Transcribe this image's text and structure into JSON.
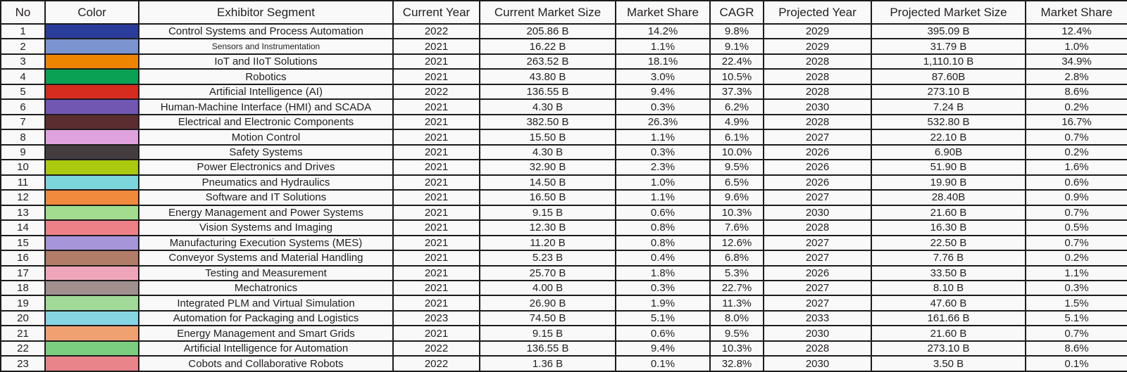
{
  "table": {
    "headers": [
      "No",
      "Color",
      "Exhibitor Segment",
      "Current Year",
      "Current Market Size",
      "Market Share",
      "CAGR",
      "Projected Year",
      "Projected Market Size",
      "Market Share"
    ],
    "rows": [
      {
        "no": "1",
        "color": "#2b3d9b",
        "segment": "Control Systems and Process Automation",
        "current_year": "2022",
        "current_market_size": "205.86 B",
        "market_share": "14.2%",
        "cagr": "9.8%",
        "projected_year": "2029",
        "projected_market_size": "395.09 B",
        "projected_market_share": "12.4%",
        "segment_small": false
      },
      {
        "no": "2",
        "color": "#7b94cf",
        "segment": "Sensors and Instrumentation",
        "current_year": "2021",
        "current_market_size": "16.22 B",
        "market_share": "1.1%",
        "cagr": "9.1%",
        "projected_year": "2029",
        "projected_market_size": "31.79 B",
        "projected_market_share": "1.0%",
        "segment_small": true
      },
      {
        "no": "3",
        "color": "#ee8500",
        "segment": "IoT and IIoT Solutions",
        "current_year": "2021",
        "current_market_size": "263.52 B",
        "market_share": "18.1%",
        "cagr": "22.4%",
        "projected_year": "2028",
        "projected_market_size": "1,110.10 B",
        "projected_market_share": "34.9%",
        "segment_small": false
      },
      {
        "no": "4",
        "color": "#0aa154",
        "segment": "Robotics",
        "current_year": "2021",
        "current_market_size": "43.80 B",
        "market_share": "3.0%",
        "cagr": "10.5%",
        "projected_year": "2028",
        "projected_market_size": "87.60B",
        "projected_market_share": "2.8%",
        "segment_small": false
      },
      {
        "no": "5",
        "color": "#d62c1f",
        "segment": "Artificial Intelligence (AI)",
        "current_year": "2022",
        "current_market_size": "136.55 B",
        "market_share": "9.4%",
        "cagr": "37.3%",
        "projected_year": "2028",
        "projected_market_size": "273.10 B",
        "projected_market_share": "8.6%",
        "segment_small": false
      },
      {
        "no": "6",
        "color": "#7156b2",
        "segment": "Human-Machine Interface (HMI) and SCADA",
        "current_year": "2021",
        "current_market_size": "4.30 B",
        "market_share": "0.3%",
        "cagr": "6.2%",
        "projected_year": "2030",
        "projected_market_size": "7.24 B",
        "projected_market_share": "0.2%",
        "segment_small": false
      },
      {
        "no": "7",
        "color": "#5c2d30",
        "segment": "Electrical and Electronic Components",
        "current_year": "2021",
        "current_market_size": "382.50 B",
        "market_share": "26.3%",
        "cagr": "4.9%",
        "projected_year": "2028",
        "projected_market_size": "532.80 B",
        "projected_market_share": "16.7%",
        "segment_small": false
      },
      {
        "no": "8",
        "color": "#e0a2de",
        "segment": "Motion Control",
        "current_year": "2021",
        "current_market_size": "15.50 B",
        "market_share": "1.1%",
        "cagr": "6.1%",
        "projected_year": "2027",
        "projected_market_size": "22.10 B",
        "projected_market_share": "0.7%",
        "segment_small": false
      },
      {
        "no": "9",
        "color": "#433d3f",
        "segment": "Safety Systems",
        "current_year": "2021",
        "current_market_size": "4.30 B",
        "market_share": "0.3%",
        "cagr": "10.0%",
        "projected_year": "2026",
        "projected_market_size": "6.90B",
        "projected_market_share": "0.2%",
        "segment_small": false
      },
      {
        "no": "10",
        "color": "#abc90f",
        "segment": "Power Electronics and Drives",
        "current_year": "2021",
        "current_market_size": "32.90 B",
        "market_share": "2.3%",
        "cagr": "9.5%",
        "projected_year": "2026",
        "projected_market_size": "51.90 B",
        "projected_market_share": "1.6%",
        "segment_small": false
      },
      {
        "no": "11",
        "color": "#7cd5da",
        "segment": "Pneumatics and Hydraulics",
        "current_year": "2021",
        "current_market_size": "14.50 B",
        "market_share": "1.0%",
        "cagr": "6.5%",
        "projected_year": "2026",
        "projected_market_size": "19.90 B",
        "projected_market_share": "0.6%",
        "segment_small": false
      },
      {
        "no": "12",
        "color": "#f28a3e",
        "segment": "Software and IT Solutions",
        "current_year": "2021",
        "current_market_size": "16.50 B",
        "market_share": "1.1%",
        "cagr": "9.6%",
        "projected_year": "2027",
        "projected_market_size": "28.40B",
        "projected_market_share": "0.9%",
        "segment_small": false
      },
      {
        "no": "13",
        "color": "#a3dc8e",
        "segment": "Energy Management and Power Systems",
        "current_year": "2021",
        "current_market_size": "9.15 B",
        "market_share": "0.6%",
        "cagr": "10.3%",
        "projected_year": "2030",
        "projected_market_size": "21.60 B",
        "projected_market_share": "0.7%",
        "segment_small": false
      },
      {
        "no": "14",
        "color": "#ed8187",
        "segment": "Vision Systems and Imaging",
        "current_year": "2021",
        "current_market_size": "12.30 B",
        "market_share": "0.8%",
        "cagr": "7.6%",
        "projected_year": "2028",
        "projected_market_size": "16.30 B",
        "projected_market_share": "0.5%",
        "segment_small": false
      },
      {
        "no": "15",
        "color": "#a795d9",
        "segment": "Manufacturing Execution Systems (MES)",
        "current_year": "2021",
        "current_market_size": "11.20 B",
        "market_share": "0.8%",
        "cagr": "12.6%",
        "projected_year": "2027",
        "projected_market_size": "22.50 B",
        "projected_market_share": "0.7%",
        "segment_small": false
      },
      {
        "no": "16",
        "color": "#b17c68",
        "segment": "Conveyor Systems and Material Handling",
        "current_year": "2021",
        "current_market_size": "5.23 B",
        "market_share": "0.4%",
        "cagr": "6.8%",
        "projected_year": "2027",
        "projected_market_size": "7.76 B",
        "projected_market_share": "0.2%",
        "segment_small": false
      },
      {
        "no": "17",
        "color": "#efa6bb",
        "segment": "Testing and Measurement",
        "current_year": "2021",
        "current_market_size": "25.70 B",
        "market_share": "1.8%",
        "cagr": "5.3%",
        "projected_year": "2026",
        "projected_market_size": "33.50 B",
        "projected_market_share": "1.1%",
        "segment_small": false
      },
      {
        "no": "18",
        "color": "#a09190",
        "segment": "Mechatronics",
        "current_year": "2021",
        "current_market_size": "4.00 B",
        "market_share": "0.3%",
        "cagr": "22.7%",
        "projected_year": "2027",
        "projected_market_size": "8.10 B",
        "projected_market_share": "0.3%",
        "segment_small": false
      },
      {
        "no": "19",
        "color": "#a0d998",
        "segment": "Integrated PLM and Virtual Simulation",
        "current_year": "2021",
        "current_market_size": "26.90 B",
        "market_share": "1.9%",
        "cagr": "11.3%",
        "projected_year": "2027",
        "projected_market_size": "47.60 B",
        "projected_market_share": "1.5%",
        "segment_small": false
      },
      {
        "no": "20",
        "color": "#86d5e2",
        "segment": "Automation for Packaging and Logistics",
        "current_year": "2023",
        "current_market_size": "74.50 B",
        "market_share": "5.1%",
        "cagr": "8.0%",
        "projected_year": "2033",
        "projected_market_size": "161.66 B",
        "projected_market_share": "5.1%",
        "segment_small": false
      },
      {
        "no": "21",
        "color": "#f0a172",
        "segment": "Energy Management and Smart Grids",
        "current_year": "2021",
        "current_market_size": "9.15 B",
        "market_share": "0.6%",
        "cagr": "9.5%",
        "projected_year": "2030",
        "projected_market_size": "21.60 B",
        "projected_market_share": "0.7%",
        "segment_small": false
      },
      {
        "no": "22",
        "color": "#7bce80",
        "segment": "Artificial Intelligence for Automation",
        "current_year": "2022",
        "current_market_size": "136.55 B",
        "market_share": "9.4%",
        "cagr": "10.3%",
        "projected_year": "2028",
        "projected_market_size": "273.10 B",
        "projected_market_share": "8.6%",
        "segment_small": false
      },
      {
        "no": "23",
        "color": "#e9848b",
        "segment": "Cobots and Collaborative Robots",
        "current_year": "2022",
        "current_market_size": "1.36 B",
        "market_share": "0.1%",
        "cagr": "32.8%",
        "projected_year": "2030",
        "projected_market_size": "3.50 B",
        "projected_market_share": "0.1%",
        "segment_small": false
      }
    ]
  }
}
